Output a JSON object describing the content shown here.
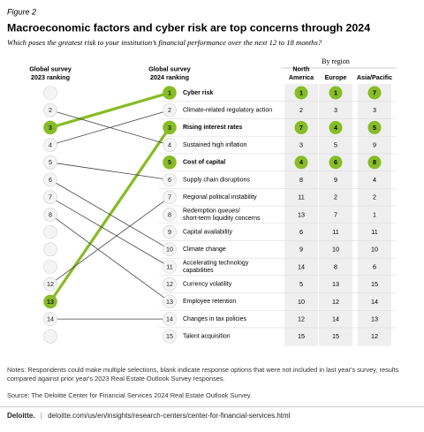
{
  "figure_label": "Figure 2",
  "title": "Macroeconomic factors and cyber risk are top concerns through 2024",
  "subtitle": "Which poses the greatest risk to your institution’s financial performance over the next 12 to 18 months?",
  "headers": {
    "rank_2023": [
      "Global survey",
      "2023 ranking"
    ],
    "rank_2024": [
      "Global survey",
      "2024 ranking"
    ],
    "by_region": "By region",
    "north_america": [
      "North",
      "America"
    ],
    "europe": [
      "Europe"
    ],
    "asia_pacific": [
      "Asia/Pacific"
    ]
  },
  "highlight_color": "#86bc25",
  "rows": [
    {
      "label": [
        "Cyber risk"
      ],
      "rank_2023": 3,
      "rank_2024": 1,
      "north_america": 1,
      "europe": 1,
      "asia_pacific": 7,
      "highlight": true
    },
    {
      "label": [
        "Climate-related regulatory action"
      ],
      "rank_2023": 4,
      "rank_2024": 2,
      "north_america": 2,
      "europe": 3,
      "asia_pacific": 3,
      "highlight": false
    },
    {
      "label": [
        "Rising interest rates"
      ],
      "rank_2023": 13,
      "rank_2024": 3,
      "north_america": 7,
      "europe": 4,
      "asia_pacific": 5,
      "highlight": true
    },
    {
      "label": [
        "Sustained high inflation"
      ],
      "rank_2023": 2,
      "rank_2024": 4,
      "north_america": 3,
      "europe": 5,
      "asia_pacific": 9,
      "highlight": false
    },
    {
      "label": [
        "Cost of capital"
      ],
      "rank_2023": null,
      "rank_2024": 5,
      "north_america": 4,
      "europe": 6,
      "asia_pacific": 8,
      "highlight": true
    },
    {
      "label": [
        "Supply chain disruptions"
      ],
      "rank_2023": 5,
      "rank_2024": 6,
      "north_america": 8,
      "europe": 9,
      "asia_pacific": 4,
      "highlight": false
    },
    {
      "label": [
        "Regional political instability"
      ],
      "rank_2023": 12,
      "rank_2024": 7,
      "north_america": 11,
      "europe": 2,
      "asia_pacific": 2,
      "highlight": false
    },
    {
      "label": [
        "Redemption queues/",
        "short-term liquidity concerns"
      ],
      "rank_2023": null,
      "rank_2024": 8,
      "north_america": 13,
      "europe": 7,
      "asia_pacific": 1,
      "highlight": false
    },
    {
      "label": [
        "Capital availability"
      ],
      "rank_2023": null,
      "rank_2024": 9,
      "north_america": 6,
      "europe": 11,
      "asia_pacific": 11,
      "highlight": false
    },
    {
      "label": [
        "Climate change"
      ],
      "rank_2023": 6,
      "rank_2024": 10,
      "north_america": 9,
      "europe": 10,
      "asia_pacific": 10,
      "highlight": false
    },
    {
      "label": [
        "Accelerating technology",
        "capabilities"
      ],
      "rank_2023": 7,
      "rank_2024": 11,
      "north_america": 14,
      "europe": 8,
      "asia_pacific": 6,
      "highlight": false
    },
    {
      "label": [
        "Currency volatility"
      ],
      "rank_2023": null,
      "rank_2024": 12,
      "north_america": 5,
      "europe": 13,
      "asia_pacific": 15,
      "highlight": false
    },
    {
      "label": [
        "Employee retention"
      ],
      "rank_2023": 8,
      "rank_2024": 13,
      "north_america": 10,
      "europe": 12,
      "asia_pacific": 14,
      "highlight": false
    },
    {
      "label": [
        "Changes in tax policies"
      ],
      "rank_2023": 14,
      "rank_2024": 14,
      "north_america": 12,
      "europe": 14,
      "asia_pacific": 13,
      "highlight": false
    },
    {
      "label": [
        "Talent acquisition"
      ],
      "rank_2023": null,
      "rank_2024": 15,
      "north_america": 15,
      "europe": 15,
      "asia_pacific": 12,
      "highlight": false
    }
  ],
  "notes": "Notes: Respondents could make multiple selections, blank indicate response options that were not included in last year's survey, results compared against prior year's 2023 Real Estate Outlook Survey responses.",
  "source": "Source: The Deloitte Center for Financial Services 2024 Real Estate Outlook Survey.",
  "footer": {
    "brand": "Deloitte.",
    "url": "deloitte.com/us/en/insights/research-centers/center-for-financial-services.html"
  }
}
